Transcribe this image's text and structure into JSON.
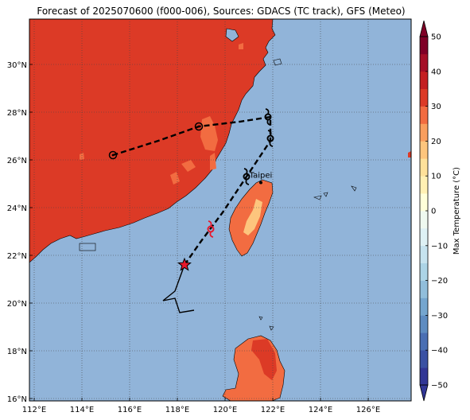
{
  "title": "Forecast of 2025070600 (f000-006), Sources: GDACS (TC track), GFS (Meteo)",
  "map": {
    "lon_range": [
      111.8,
      127.8
    ],
    "lat_range": [
      15.9,
      31.9
    ],
    "x_ticks": [
      112,
      114,
      116,
      118,
      120,
      122,
      124,
      126
    ],
    "x_tick_labels": [
      "112°E",
      "114°E",
      "116°E",
      "118°E",
      "120°E",
      "122°E",
      "124°E",
      "126°E"
    ],
    "y_ticks": [
      16,
      18,
      20,
      22,
      24,
      26,
      28,
      30
    ],
    "y_tick_labels": [
      "16°N",
      "18°N",
      "20°N",
      "22°N",
      "24°N",
      "26°N",
      "28°N",
      "30°N"
    ],
    "grid": "dotted",
    "ocean_color": "#91b4d9"
  },
  "colorbar": {
    "label": "Max Temperature (°C)",
    "ticks": [
      -50,
      -40,
      -30,
      -20,
      -10,
      0,
      10,
      20,
      30,
      40,
      50
    ],
    "tick_labels": [
      "−50",
      "−40",
      "−30",
      "−20",
      "−10",
      "0",
      "10",
      "20",
      "30",
      "40",
      "50"
    ],
    "bands": [
      {
        "from": -50,
        "to": -45,
        "color": "#313695"
      },
      {
        "from": -45,
        "to": -40,
        "color": "#3a51a3"
      },
      {
        "from": -40,
        "to": -35,
        "color": "#4a6fb3"
      },
      {
        "from": -35,
        "to": -30,
        "color": "#5e8cc1"
      },
      {
        "from": -30,
        "to": -25,
        "color": "#75a6cf"
      },
      {
        "from": -25,
        "to": -20,
        "color": "#91bedb"
      },
      {
        "from": -20,
        "to": -15,
        "color": "#acd4e6"
      },
      {
        "from": -15,
        "to": -10,
        "color": "#c6e3ef"
      },
      {
        "from": -10,
        "to": -5,
        "color": "#def1f5"
      },
      {
        "from": -5,
        "to": 0,
        "color": "#eff9f0"
      },
      {
        "from": 0,
        "to": 5,
        "color": "#ffffd9"
      },
      {
        "from": 5,
        "to": 10,
        "color": "#fff0b3"
      },
      {
        "from": 10,
        "to": 15,
        "color": "#fee19a"
      },
      {
        "from": 15,
        "to": 20,
        "color": "#fdc57d"
      },
      {
        "from": 20,
        "to": 25,
        "color": "#f99e5e"
      },
      {
        "from": 25,
        "to": 30,
        "color": "#f26c41"
      },
      {
        "from": 30,
        "to": 35,
        "color": "#dc3a26"
      },
      {
        "from": 35,
        "to": 40,
        "color": "#c41f22"
      },
      {
        "from": 40,
        "to": 45,
        "color": "#a50f27"
      },
      {
        "from": 45,
        "to": 50,
        "color": "#7f0026"
      }
    ]
  },
  "cities": [
    {
      "name": "Taipei",
      "lon": 121.5,
      "lat": 25.05
    }
  ],
  "tracks": {
    "forecast_track": [
      [
        118.3,
        21.6
      ],
      [
        119.0,
        22.6
      ],
      [
        119.9,
        23.8
      ],
      [
        120.9,
        25.3
      ],
      [
        121.9,
        26.8
      ],
      [
        121.9,
        27.8
      ],
      [
        120.6,
        27.6
      ],
      [
        118.9,
        27.4
      ],
      [
        117.2,
        26.8
      ],
      [
        115.3,
        26.2
      ]
    ],
    "past_track": [
      [
        118.3,
        21.6
      ],
      [
        117.9,
        20.5
      ],
      [
        117.4,
        20.1
      ],
      [
        117.9,
        20.2
      ],
      [
        118.1,
        19.6
      ],
      [
        118.7,
        19.7
      ]
    ],
    "storm_markers": [
      {
        "lon": 119.4,
        "lat": 23.1,
        "color": "#e8182c"
      },
      {
        "lon": 120.9,
        "lat": 25.3,
        "color": "#000000"
      },
      {
        "lon": 121.9,
        "lat": 26.9,
        "color": "#000000"
      },
      {
        "lon": 121.8,
        "lat": 27.8,
        "color": "#000000"
      }
    ],
    "circle_markers": [
      {
        "lon": 118.9,
        "lat": 27.4
      },
      {
        "lon": 115.3,
        "lat": 26.2
      }
    ],
    "current_position": {
      "lon": 118.3,
      "lat": 21.6
    }
  }
}
